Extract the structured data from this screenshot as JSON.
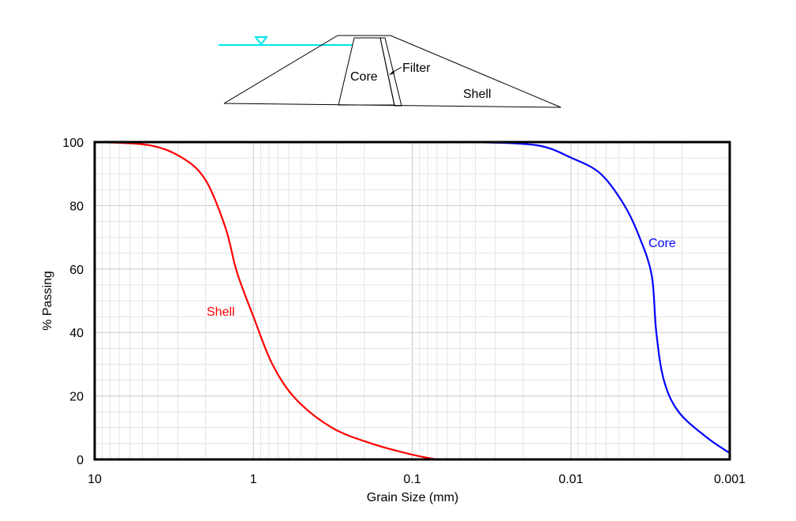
{
  "diagram": {
    "labels": {
      "core": "Core",
      "filter": "Filter",
      "shell": "Shell"
    },
    "water_color": "#00e5ee",
    "water_symbol": "water-level-triangle"
  },
  "chart_data": {
    "type": "line",
    "title": "",
    "xlabel": "Grain Size (mm)",
    "ylabel": "% Passing",
    "xscale": "log",
    "xaxis_reversed": true,
    "xlim": [
      10,
      0.001
    ],
    "ylim": [
      0,
      100
    ],
    "x_ticks": [
      "10",
      "1",
      "0.1",
      "0.01",
      "0.001"
    ],
    "y_ticks": [
      "0",
      "20",
      "40",
      "60",
      "80",
      "100"
    ],
    "grid": true,
    "legend": "none (inline labels)",
    "series": [
      {
        "name": "Shell",
        "color": "#ff0000",
        "x": [
          9.4,
          4.5,
          2.8,
          2.0,
          1.5,
          1.27,
          1.0,
          0.76,
          0.54,
          0.32,
          0.18,
          0.1,
          0.07
        ],
        "y": [
          100,
          99,
          95,
          88,
          73,
          59,
          45,
          30,
          19,
          10,
          5,
          1.5,
          0
        ]
      },
      {
        "name": "Core",
        "color": "#0000ff",
        "x": [
          0.04,
          0.0164,
          0.0099,
          0.0065,
          0.0046,
          0.0037,
          0.0031,
          0.0029,
          0.0026,
          0.0021,
          0.0014,
          0.001
        ],
        "y": [
          100,
          99,
          95,
          90,
          80,
          70,
          58,
          40,
          25,
          15,
          7,
          2
        ]
      }
    ],
    "annotations": [
      {
        "text": "Shell",
        "color": "#ff0000"
      },
      {
        "text": "Core",
        "color": "#0000ff"
      }
    ]
  }
}
